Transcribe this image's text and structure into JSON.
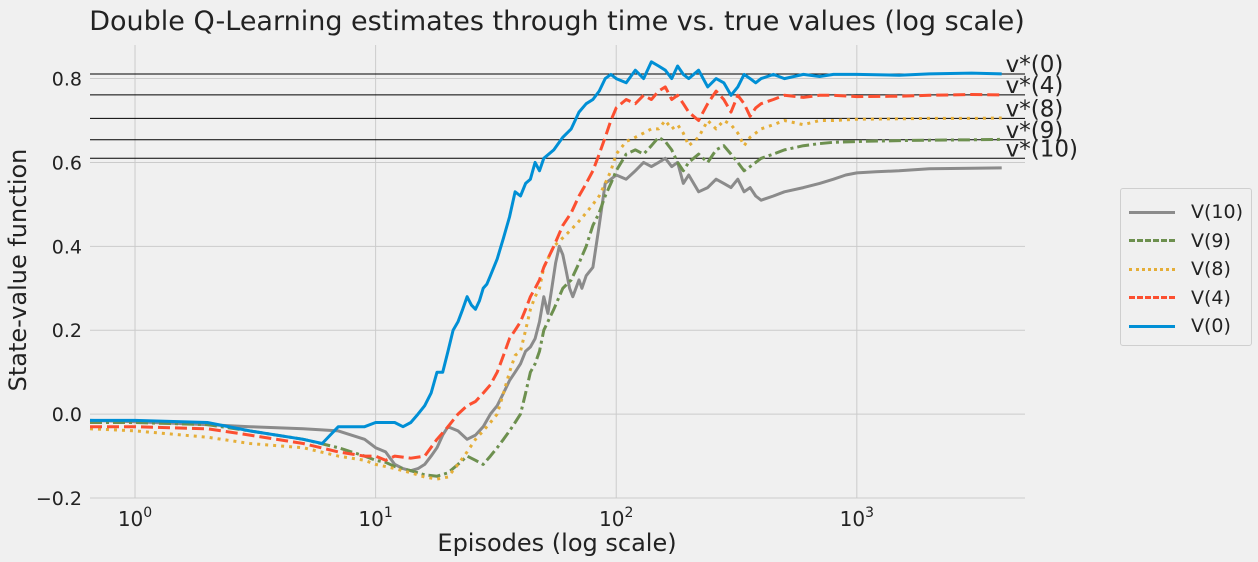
{
  "chart_data": {
    "type": "line",
    "title": "Double Q-Learning estimates through time vs. true values (log scale)",
    "xlabel": "Episodes (log scale)",
    "ylabel": "State-value function",
    "xscale": "log",
    "xlim": [
      0.65,
      5000
    ],
    "ylim": [
      -0.2,
      0.88
    ],
    "yticks": [
      "−0.2",
      "0.0",
      "0.2",
      "0.4",
      "0.6",
      "0.8"
    ],
    "ytick_values": [
      -0.2,
      0.0,
      0.2,
      0.4,
      0.6,
      0.8
    ],
    "xticks": [
      {
        "base": "10",
        "exp": "0",
        "value": 1
      },
      {
        "base": "10",
        "exp": "1",
        "value": 10
      },
      {
        "base": "10",
        "exp": "2",
        "value": 100
      },
      {
        "base": "10",
        "exp": "3",
        "value": 1000
      }
    ],
    "grid": true,
    "legend_position": "right",
    "true_values": [
      {
        "label": "v*(0)",
        "value": 0.811
      },
      {
        "label": "v*(4)",
        "value": 0.761
      },
      {
        "label": "v*(8)",
        "value": 0.705
      },
      {
        "label": "v*(9)",
        "value": 0.654
      },
      {
        "label": "v*(10)",
        "value": 0.61
      }
    ],
    "series": [
      {
        "name": "V(10)",
        "color": "#8b8b8b",
        "dash": "solid",
        "x": [
          0.65,
          1,
          2,
          3,
          5,
          7,
          9,
          10,
          11,
          12,
          13,
          14,
          15,
          16,
          17,
          18,
          19,
          20,
          22,
          24,
          26,
          28,
          30,
          32,
          34,
          36,
          38,
          40,
          42,
          44,
          46,
          48,
          50,
          52,
          54,
          56,
          58,
          60,
          62,
          64,
          66,
          68,
          70,
          72,
          75,
          80,
          85,
          90,
          95,
          100,
          110,
          120,
          130,
          140,
          150,
          160,
          170,
          180,
          190,
          200,
          220,
          240,
          260,
          280,
          300,
          320,
          340,
          360,
          380,
          400,
          450,
          500,
          600,
          700,
          800,
          900,
          1000,
          1200,
          1500,
          2000,
          3000,
          4000
        ],
        "y": [
          -0.015,
          -0.018,
          -0.025,
          -0.03,
          -0.035,
          -0.04,
          -0.06,
          -0.08,
          -0.09,
          -0.12,
          -0.13,
          -0.135,
          -0.13,
          -0.12,
          -0.1,
          -0.08,
          -0.05,
          -0.03,
          -0.04,
          -0.06,
          -0.05,
          -0.03,
          0.0,
          0.02,
          0.05,
          0.08,
          0.1,
          0.12,
          0.15,
          0.16,
          0.18,
          0.22,
          0.28,
          0.24,
          0.3,
          0.36,
          0.4,
          0.38,
          0.34,
          0.3,
          0.28,
          0.3,
          0.32,
          0.3,
          0.33,
          0.35,
          0.45,
          0.55,
          0.56,
          0.57,
          0.56,
          0.58,
          0.6,
          0.59,
          0.6,
          0.61,
          0.59,
          0.6,
          0.55,
          0.57,
          0.53,
          0.54,
          0.56,
          0.55,
          0.54,
          0.56,
          0.53,
          0.54,
          0.52,
          0.51,
          0.52,
          0.53,
          0.54,
          0.55,
          0.56,
          0.57,
          0.575,
          0.578,
          0.58,
          0.585,
          0.586,
          0.587
        ]
      },
      {
        "name": "V(9)",
        "color": "#6d904f",
        "dash": "dashdot",
        "x": [
          0.65,
          1,
          2,
          3,
          5,
          7,
          9,
          10,
          11,
          12,
          14,
          16,
          18,
          20,
          22,
          24,
          26,
          28,
          30,
          32,
          34,
          36,
          38,
          40,
          42,
          44,
          46,
          48,
          50,
          55,
          60,
          65,
          70,
          75,
          80,
          85,
          90,
          95,
          100,
          110,
          120,
          130,
          140,
          150,
          160,
          170,
          180,
          190,
          200,
          220,
          240,
          260,
          280,
          300,
          320,
          340,
          360,
          380,
          400,
          450,
          500,
          600,
          700,
          800,
          1000,
          1500,
          2000,
          3000,
          4000
        ],
        "y": [
          -0.02,
          -0.02,
          -0.025,
          -0.04,
          -0.06,
          -0.08,
          -0.1,
          -0.11,
          -0.115,
          -0.125,
          -0.135,
          -0.145,
          -0.148,
          -0.14,
          -0.12,
          -0.1,
          -0.11,
          -0.12,
          -0.1,
          -0.08,
          -0.06,
          -0.04,
          -0.02,
          0.0,
          0.05,
          0.1,
          0.12,
          0.15,
          0.2,
          0.25,
          0.3,
          0.32,
          0.36,
          0.4,
          0.45,
          0.48,
          0.52,
          0.55,
          0.58,
          0.62,
          0.63,
          0.62,
          0.64,
          0.66,
          0.65,
          0.63,
          0.6,
          0.58,
          0.6,
          0.62,
          0.6,
          0.63,
          0.64,
          0.62,
          0.6,
          0.58,
          0.59,
          0.6,
          0.61,
          0.62,
          0.63,
          0.64,
          0.645,
          0.648,
          0.65,
          0.652,
          0.653,
          0.654,
          0.655
        ]
      },
      {
        "name": "V(8)",
        "color": "#e5ae38",
        "dash": "dotted",
        "x": [
          0.65,
          1,
          2,
          3,
          5,
          7,
          9,
          10,
          11,
          12,
          14,
          16,
          18,
          20,
          22,
          24,
          26,
          28,
          30,
          32,
          34,
          36,
          38,
          40,
          42,
          44,
          46,
          48,
          50,
          55,
          60,
          65,
          70,
          75,
          80,
          85,
          90,
          95,
          100,
          110,
          120,
          130,
          140,
          150,
          160,
          170,
          180,
          190,
          200,
          220,
          240,
          260,
          280,
          300,
          320,
          340,
          360,
          380,
          400,
          450,
          500,
          600,
          700,
          800,
          1000,
          1500,
          2000,
          3000,
          4000
        ],
        "y": [
          -0.035,
          -0.04,
          -0.055,
          -0.07,
          -0.08,
          -0.1,
          -0.11,
          -0.12,
          -0.125,
          -0.13,
          -0.14,
          -0.15,
          -0.155,
          -0.15,
          -0.12,
          -0.09,
          -0.06,
          -0.04,
          -0.02,
          0.0,
          0.05,
          0.1,
          0.14,
          0.15,
          0.2,
          0.25,
          0.28,
          0.3,
          0.35,
          0.4,
          0.42,
          0.44,
          0.46,
          0.48,
          0.5,
          0.52,
          0.55,
          0.58,
          0.62,
          0.65,
          0.66,
          0.67,
          0.68,
          0.68,
          0.7,
          0.68,
          0.69,
          0.67,
          0.64,
          0.66,
          0.7,
          0.68,
          0.7,
          0.69,
          0.67,
          0.64,
          0.66,
          0.67,
          0.68,
          0.69,
          0.7,
          0.69,
          0.7,
          0.7,
          0.703,
          0.704,
          0.705,
          0.705,
          0.706
        ]
      },
      {
        "name": "V(4)",
        "color": "#fc4f30",
        "dash": "dashed",
        "x": [
          0.65,
          1,
          2,
          3,
          5,
          7,
          9,
          10,
          11,
          12,
          14,
          16,
          18,
          20,
          22,
          24,
          26,
          28,
          30,
          32,
          34,
          36,
          38,
          40,
          42,
          44,
          46,
          48,
          50,
          55,
          60,
          65,
          70,
          75,
          80,
          85,
          90,
          95,
          100,
          110,
          120,
          130,
          140,
          150,
          160,
          170,
          180,
          190,
          200,
          220,
          240,
          260,
          280,
          300,
          320,
          340,
          360,
          380,
          400,
          450,
          500,
          600,
          700,
          800,
          1000,
          1500,
          2000,
          3000,
          4000
        ],
        "y": [
          -0.03,
          -0.03,
          -0.035,
          -0.05,
          -0.07,
          -0.09,
          -0.1,
          -0.1,
          -0.11,
          -0.1,
          -0.105,
          -0.1,
          -0.06,
          -0.03,
          0.0,
          0.02,
          0.03,
          0.05,
          0.07,
          0.1,
          0.14,
          0.18,
          0.2,
          0.22,
          0.25,
          0.28,
          0.3,
          0.32,
          0.35,
          0.4,
          0.45,
          0.48,
          0.52,
          0.55,
          0.58,
          0.62,
          0.66,
          0.7,
          0.73,
          0.75,
          0.74,
          0.76,
          0.75,
          0.77,
          0.78,
          0.75,
          0.76,
          0.74,
          0.72,
          0.7,
          0.74,
          0.77,
          0.75,
          0.72,
          0.76,
          0.74,
          0.71,
          0.73,
          0.74,
          0.75,
          0.76,
          0.755,
          0.76,
          0.76,
          0.757,
          0.758,
          0.76,
          0.762,
          0.761
        ]
      },
      {
        "name": "V(0)",
        "color": "#008fd5",
        "dash": "solid",
        "x": [
          0.65,
          1,
          2,
          3,
          5,
          6,
          7,
          8,
          9,
          10,
          11,
          12,
          13,
          14,
          15,
          16,
          17,
          18,
          19,
          20,
          21,
          22,
          23,
          24,
          25,
          26,
          27,
          28,
          29,
          30,
          32,
          34,
          36,
          38,
          40,
          42,
          44,
          46,
          48,
          50,
          55,
          60,
          65,
          70,
          75,
          80,
          85,
          90,
          95,
          100,
          110,
          120,
          130,
          140,
          150,
          160,
          170,
          180,
          190,
          200,
          220,
          240,
          260,
          280,
          300,
          320,
          340,
          360,
          380,
          400,
          450,
          500,
          600,
          700,
          800,
          1000,
          1500,
          2000,
          3000,
          4000
        ],
        "y": [
          -0.015,
          -0.015,
          -0.02,
          -0.04,
          -0.06,
          -0.07,
          -0.03,
          -0.03,
          -0.03,
          -0.02,
          -0.02,
          -0.02,
          -0.03,
          -0.02,
          0.0,
          0.02,
          0.05,
          0.1,
          0.1,
          0.15,
          0.2,
          0.22,
          0.25,
          0.28,
          0.26,
          0.25,
          0.27,
          0.3,
          0.31,
          0.33,
          0.37,
          0.42,
          0.47,
          0.53,
          0.52,
          0.55,
          0.56,
          0.6,
          0.58,
          0.61,
          0.63,
          0.66,
          0.68,
          0.72,
          0.74,
          0.75,
          0.77,
          0.8,
          0.81,
          0.8,
          0.79,
          0.82,
          0.8,
          0.84,
          0.83,
          0.82,
          0.8,
          0.83,
          0.81,
          0.8,
          0.82,
          0.78,
          0.8,
          0.79,
          0.76,
          0.78,
          0.81,
          0.8,
          0.79,
          0.8,
          0.81,
          0.8,
          0.81,
          0.805,
          0.81,
          0.81,
          0.808,
          0.811,
          0.813,
          0.811
        ]
      }
    ]
  }
}
